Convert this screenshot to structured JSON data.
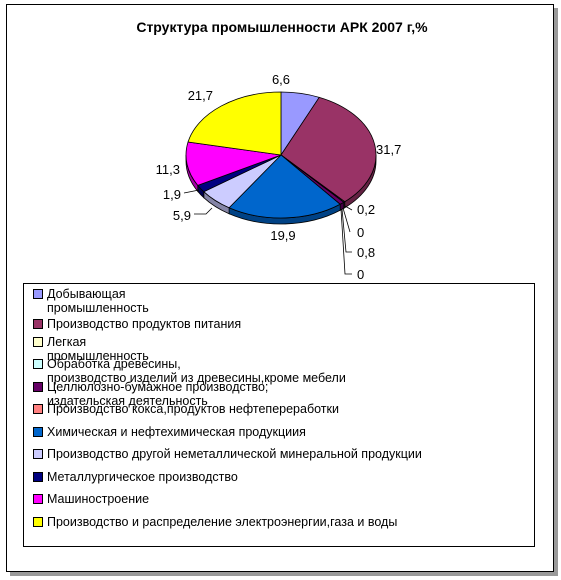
{
  "chart_data": {
    "type": "pie",
    "title": "Структура промышленности АРК 2007 г,%",
    "categories": [
      "Добывающая\n промышленность",
      "Производство продуктов питания",
      "Легкая\nпромышленность",
      "Обработка древесины,\nпроизводство изделий из древесины,кроме мебели",
      "Целлюлозно-бумажное производство;\nиздательская деятельность",
      "Производство кокса,продуктов нефтепереработки",
      "Химическая и нефтехимическая продукциия",
      "Производство другой неметаллической минеральной продукции",
      "Металлургическое производство",
      "Машиностроение",
      "Производство и распределение электроэнергии,газа и воды"
    ],
    "values": [
      6.6,
      31.7,
      0.2,
      0,
      0.8,
      0,
      19.9,
      5.9,
      1.9,
      11.3,
      21.7
    ],
    "data_labels": [
      "6,6",
      "31,7",
      "0,2",
      "0",
      "0,8",
      "0",
      "19,9",
      "5,9",
      "1,9",
      "11,3",
      "21,7"
    ],
    "colors": [
      "#9999FF",
      "#993366",
      "#FFFFCC",
      "#CCFFFF",
      "#660066",
      "#FF8080",
      "#0066CC",
      "#CCCCFF",
      "#000080",
      "#FF00FF",
      "#FFFF00"
    ],
    "legend_position": "bottom"
  }
}
